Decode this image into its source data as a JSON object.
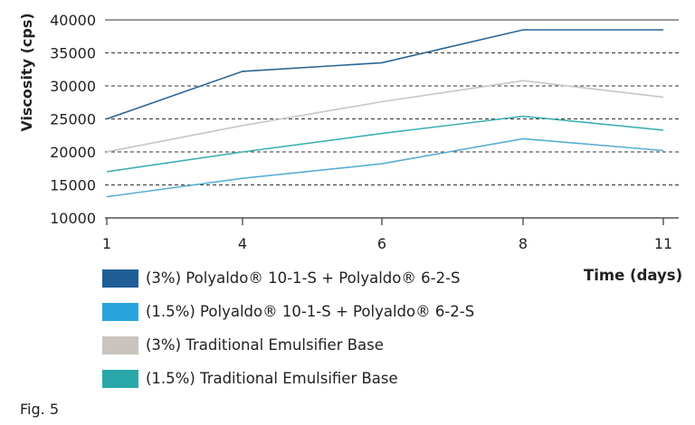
{
  "chart_data": {
    "type": "line",
    "ylabel": "Viscosity (cps)",
    "xlabel": "Time (days)",
    "x_ticks": [
      "1",
      "4",
      "6",
      "8",
      "11"
    ],
    "y_ticks": [
      "10000",
      "15000",
      "20000",
      "25000",
      "30000",
      "35000",
      "40000"
    ],
    "ylim": [
      10000,
      40000
    ],
    "grid": "horizontal-dashed",
    "series": [
      {
        "name": "(3%) Polyaldo® 10-1-S + Polyaldo® 6-2-S",
        "color": "#2a6494",
        "values": [
          25000,
          32200,
          33500,
          38500,
          38500
        ]
      },
      {
        "name": "(1.5%) Polyaldo® 10-1-S + Polyaldo® 6-2-S",
        "color": "#5aaed4",
        "values": [
          13200,
          16000,
          18200,
          22000,
          20200
        ]
      },
      {
        "name": "(3%) Traditional Emulsifier Base",
        "color": "#c9c6c2",
        "values": [
          20000,
          24000,
          27600,
          30800,
          28300
        ]
      },
      {
        "name": "(1.5%) Traditional Emulsifier Base",
        "color": "#3fb0b0",
        "values": [
          17000,
          20000,
          22800,
          25400,
          23300
        ]
      }
    ]
  },
  "legend": {
    "swatches": [
      "#1f5d96",
      "#2aa3dd",
      "#c9c4bd",
      "#2aa8a9"
    ]
  },
  "caption": "Fig. 5"
}
